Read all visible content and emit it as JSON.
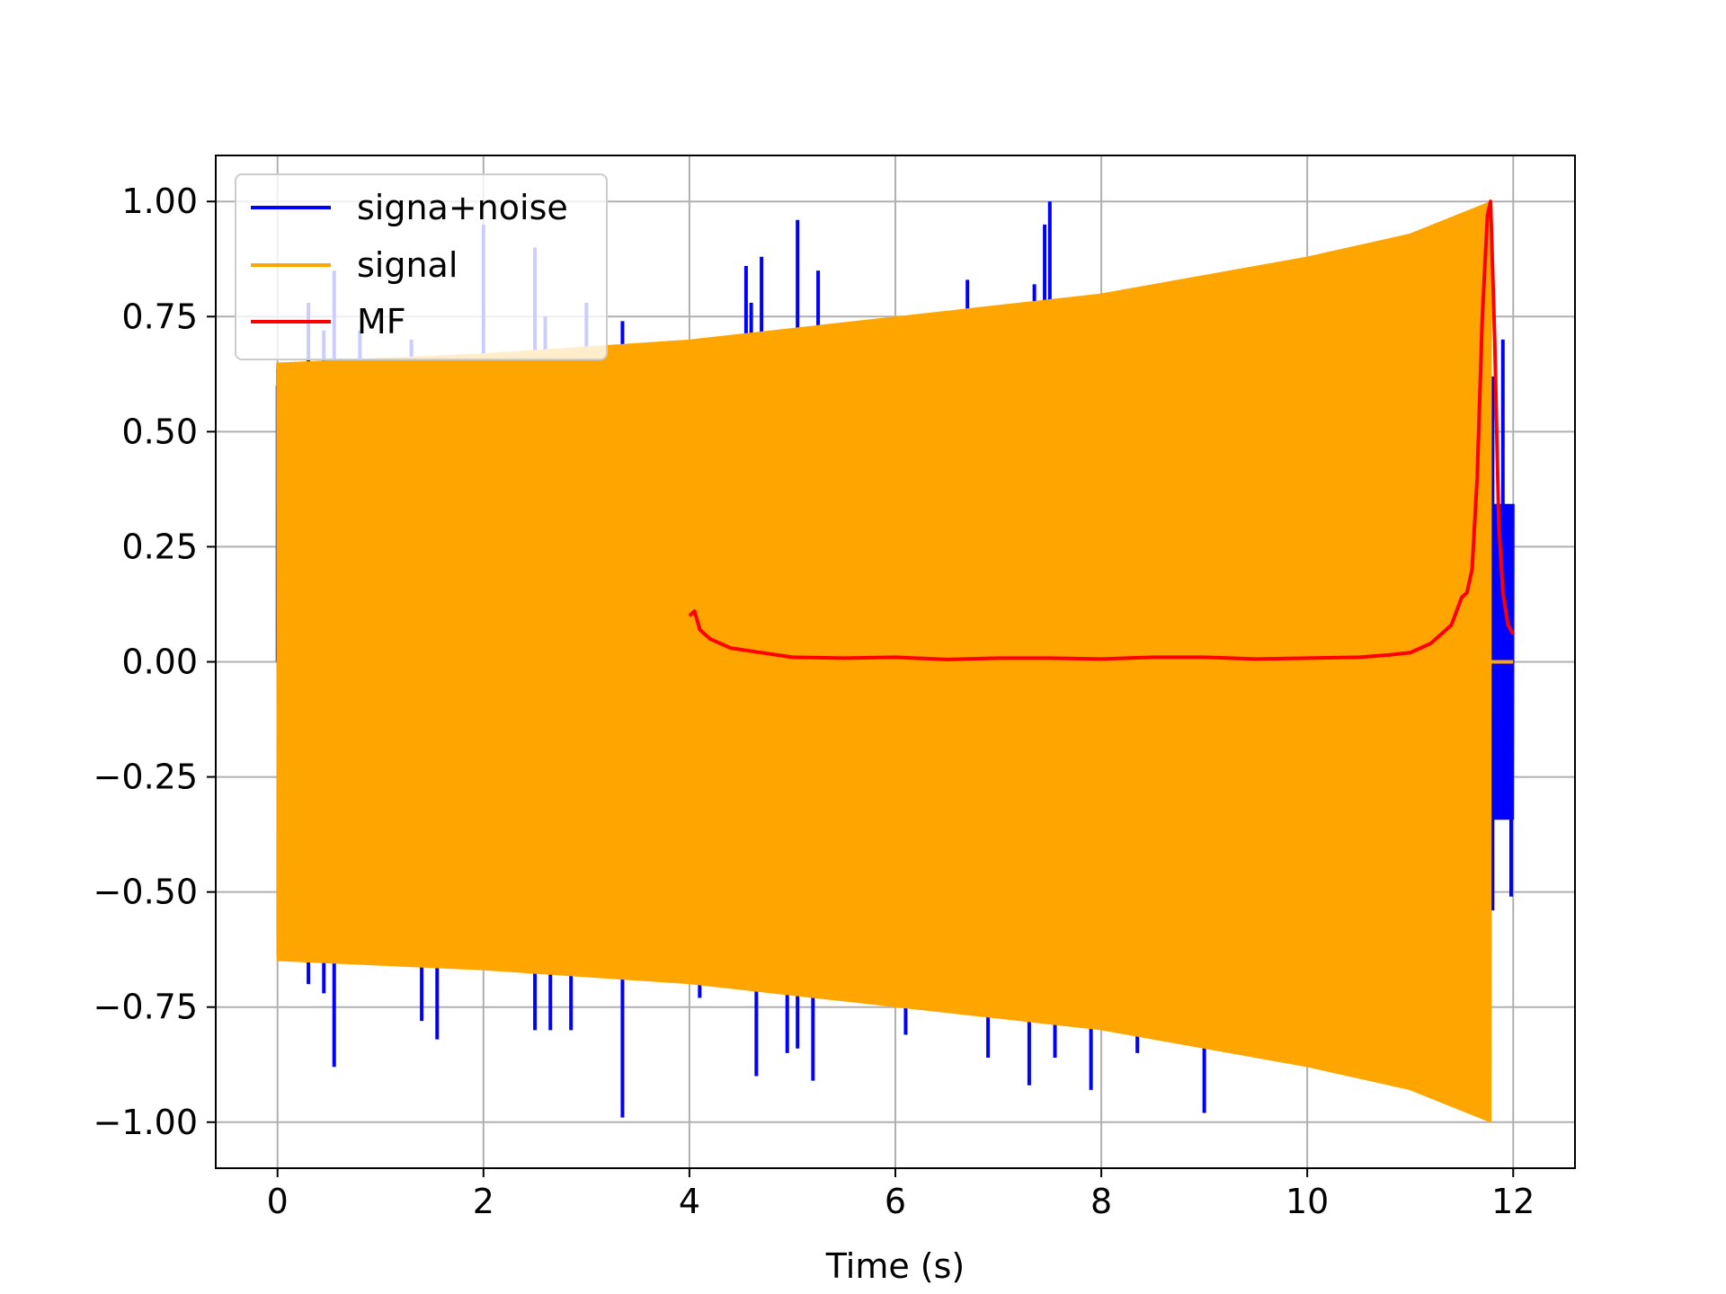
{
  "chart_data": {
    "type": "line",
    "title": "",
    "xlabel": "Time (s)",
    "ylabel": "",
    "xlim": [
      -0.6,
      12.6
    ],
    "ylim": [
      -1.1,
      1.1
    ],
    "grid": true,
    "legend_position": "upper-left",
    "x_ticks": [
      0,
      2,
      4,
      6,
      8,
      10,
      12
    ],
    "x_tick_labels": [
      "0",
      "2",
      "4",
      "6",
      "8",
      "10",
      "12"
    ],
    "y_ticks": [
      -1.0,
      -0.75,
      -0.5,
      -0.25,
      0.0,
      0.25,
      0.5,
      0.75,
      1.0
    ],
    "y_tick_labels": [
      "−1.00",
      "−0.75",
      "−0.50",
      "−0.25",
      "0.00",
      "0.25",
      "0.50",
      "0.75",
      "1.00"
    ],
    "series": [
      {
        "name": "signa+noise",
        "color": "#0000ff",
        "description_values": {
          "x_range": [
            0,
            12
          ],
          "spikes": [
            [
              0.0,
              0.6
            ],
            [
              0.3,
              0.78
            ],
            [
              0.45,
              0.72
            ],
            [
              0.55,
              0.85
            ],
            [
              0.8,
              0.72
            ],
            [
              1.3,
              0.7
            ],
            [
              2.0,
              0.95
            ],
            [
              2.5,
              0.9
            ],
            [
              2.6,
              0.75
            ],
            [
              3.0,
              0.78
            ],
            [
              3.35,
              0.74
            ],
            [
              4.55,
              0.86
            ],
            [
              4.6,
              0.78
            ],
            [
              4.7,
              0.88
            ],
            [
              5.05,
              0.96
            ],
            [
              5.25,
              0.85
            ],
            [
              5.95,
              0.72
            ],
            [
              6.7,
              0.83
            ],
            [
              7.35,
              0.82
            ],
            [
              7.45,
              0.95
            ],
            [
              7.5,
              1.0
            ],
            [
              11.6,
              0.0
            ],
            [
              11.8,
              0.62
            ],
            [
              11.9,
              0.7
            ],
            [
              11.98,
              0.15
            ],
            [
              0.3,
              -0.7
            ],
            [
              0.45,
              -0.72
            ],
            [
              0.55,
              -0.88
            ],
            [
              1.4,
              -0.78
            ],
            [
              1.55,
              -0.82
            ],
            [
              2.5,
              -0.8
            ],
            [
              2.65,
              -0.8
            ],
            [
              2.85,
              -0.8
            ],
            [
              3.35,
              -0.99
            ],
            [
              4.1,
              -0.73
            ],
            [
              4.65,
              -0.9
            ],
            [
              4.95,
              -0.85
            ],
            [
              5.05,
              -0.84
            ],
            [
              5.2,
              -0.91
            ],
            [
              6.1,
              -0.81
            ],
            [
              6.9,
              -0.86
            ],
            [
              7.3,
              -0.92
            ],
            [
              7.55,
              -0.86
            ],
            [
              7.9,
              -0.93
            ],
            [
              8.35,
              -0.85
            ],
            [
              9.0,
              -0.98
            ],
            [
              11.8,
              -0.54
            ],
            [
              11.98,
              -0.51
            ]
          ]
        }
      },
      {
        "name": "signal",
        "color": "#ffa500",
        "description_values": {
          "x_range": [
            0,
            11.78
          ],
          "envelope": [
            [
              0,
              0.65
            ],
            [
              2,
              0.67
            ],
            [
              4,
              0.7
            ],
            [
              6,
              0.75
            ],
            [
              8,
              0.8
            ],
            [
              10,
              0.88
            ],
            [
              11,
              0.93
            ],
            [
              11.78,
              1.0
            ]
          ],
          "after_end_value": 0.0
        }
      },
      {
        "name": "MF",
        "color": "#ff0000",
        "description_values": {
          "x": [
            4.0,
            4.05,
            4.1,
            4.2,
            4.4,
            4.7,
            5.0,
            5.5,
            6.0,
            6.5,
            7.0,
            7.5,
            8.0,
            8.5,
            9.0,
            9.5,
            10.0,
            10.5,
            10.8,
            11.0,
            11.2,
            11.3,
            11.4,
            11.5,
            11.55,
            11.6,
            11.65,
            11.7,
            11.75,
            11.78,
            11.82,
            11.86,
            11.9,
            11.95,
            12.0
          ],
          "y": [
            0.1,
            0.11,
            0.07,
            0.05,
            0.03,
            0.02,
            0.01,
            0.008,
            0.01,
            0.005,
            0.008,
            0.008,
            0.006,
            0.01,
            0.01,
            0.006,
            0.008,
            0.01,
            0.015,
            0.02,
            0.04,
            0.06,
            0.08,
            0.14,
            0.15,
            0.2,
            0.4,
            0.75,
            0.97,
            1.0,
            0.7,
            0.3,
            0.15,
            0.08,
            0.06
          ]
        }
      }
    ]
  }
}
